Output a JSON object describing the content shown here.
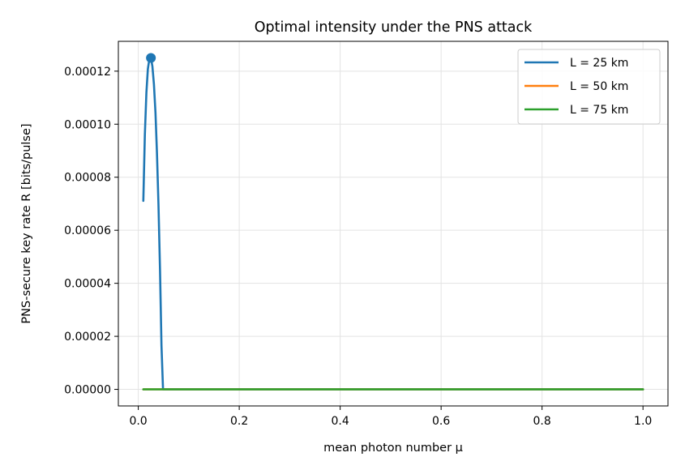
{
  "chart_data": {
    "type": "line",
    "title": "Optimal intensity under the PNS attack",
    "xlabel": "mean photon number μ",
    "ylabel": "PNS-secure key rate R [bits/pulse]",
    "xlim": [
      -0.0395,
      1.0495
    ],
    "ylim": [
      -6.25e-06,
      0.00013125
    ],
    "xticks": [
      0.0,
      0.2,
      0.4,
      0.6,
      0.8,
      1.0
    ],
    "xtick_labels": [
      "0.0",
      "0.2",
      "0.4",
      "0.6",
      "0.8",
      "1.0"
    ],
    "yticks": [
      0,
      2e-05,
      4e-05,
      6e-05,
      8e-05,
      0.0001,
      0.00012
    ],
    "ytick_labels": [
      "0.00000",
      "0.00002",
      "0.00004",
      "0.00006",
      "0.00008",
      "0.00010",
      "0.00012"
    ],
    "grid": true,
    "legend_position": "top-right",
    "series": [
      {
        "name": "L = 25 km",
        "color": "#1f77b4",
        "x": [
          0.01,
          0.013,
          0.016,
          0.019,
          0.022,
          0.025,
          0.028,
          0.031,
          0.034,
          0.037,
          0.04,
          0.043,
          0.046,
          0.049,
          0.05,
          0.06,
          0.08,
          0.1,
          0.2,
          0.4,
          0.6,
          0.8,
          1.0
        ],
        "y": [
          7.11e-05,
          9.61e-05,
          0.0001119,
          0.0001208,
          0.0001247,
          0.000125,
          0.0001218,
          0.000115,
          0.0001043,
          8.93e-05,
          6.95e-05,
          4.49e-05,
          1.65e-05,
          0,
          0,
          0,
          0,
          0,
          0,
          0,
          0,
          0,
          0
        ]
      },
      {
        "name": "L = 50 km",
        "color": "#ff7f0e",
        "x": [
          0.01,
          0.2,
          0.4,
          0.6,
          0.8,
          1.0
        ],
        "y": [
          0,
          0,
          0,
          0,
          0,
          0
        ]
      },
      {
        "name": "L = 75 km",
        "color": "#2ca02c",
        "x": [
          0.01,
          0.2,
          0.4,
          0.6,
          0.8,
          1.0
        ],
        "y": [
          0,
          0,
          0,
          0,
          0,
          0
        ]
      }
    ],
    "optimum_marker": {
      "series": "L = 25 km",
      "x": 0.025,
      "y": 0.000125,
      "color": "#1f77b4"
    }
  }
}
